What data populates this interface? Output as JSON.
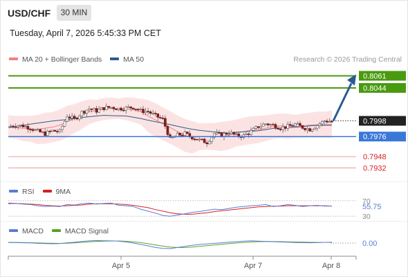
{
  "header": {
    "symbol": "USD/CHF",
    "timeframe": "30 MIN",
    "datetime": "Tuesday, April 7, 2026 5:45:33 PM CET"
  },
  "legend_main": {
    "ma20_label": "MA 20 + Bollinger Bands",
    "ma50_label": "MA 50",
    "ma20_color": "#f08080",
    "ma50_color": "#2c5a8c"
  },
  "source_note": "Research © 2026 Trading Central",
  "legend_rsi": {
    "rsi_label": "RSI",
    "ma_label": "9MA",
    "rsi_color": "#5b7bd5",
    "ma_color": "#d62020"
  },
  "legend_macd": {
    "macd_label": "MACD",
    "signal_label": "MACD Signal",
    "macd_color": "#5b7bd5",
    "signal_color": "#5aa02c"
  },
  "chart_data": {
    "type": "candlestick",
    "instrument": "USD/CHF",
    "interval": "30 MIN",
    "x_ticks": [
      "Apr 5",
      "Apr 7",
      "Apr 8"
    ],
    "price_range": [
      0.792,
      0.8075
    ],
    "current_price": "0.7998",
    "levels": [
      {
        "value": 0.8061,
        "label": "0.8061",
        "kind": "resistance",
        "color": "#4a9a10"
      },
      {
        "value": 0.8044,
        "label": "0.8044",
        "kind": "resistance",
        "color": "#4a9a10"
      },
      {
        "value": 0.7998,
        "label": "0.7998",
        "kind": "current",
        "color": "#222222"
      },
      {
        "value": 0.7976,
        "label": "0.7976",
        "kind": "pivot",
        "color": "#3a78d8"
      },
      {
        "value": 0.7948,
        "label": "0.7948",
        "kind": "support",
        "color": "#d42020"
      },
      {
        "value": 0.7932,
        "label": "0.7932",
        "kind": "support",
        "color": "#d42020"
      }
    ],
    "forecast_arrow": {
      "from": 0.7998,
      "to": 0.8061,
      "color": "#2a5a96"
    },
    "price_path": [
      0.799,
      0.7992,
      0.7991,
      0.7988,
      0.7983,
      0.798,
      0.7984,
      0.7983,
      0.8005,
      0.8,
      0.801,
      0.8015,
      0.8012,
      0.8016,
      0.8017,
      0.8015,
      0.8016,
      0.8017,
      0.8012,
      0.8011,
      0.8005,
      0.8,
      0.7972,
      0.7978,
      0.798,
      0.7975,
      0.7971,
      0.7968,
      0.798,
      0.7978,
      0.7982,
      0.7977,
      0.7977,
      0.7983,
      0.799,
      0.7994,
      0.7992,
      0.7988,
      0.799,
      0.7993,
      0.7989,
      0.7986,
      0.7992,
      0.7998,
      0.7997
    ],
    "rsi": {
      "levels": [
        "70",
        "30"
      ],
      "last_value": "55.75",
      "rsi_path": [
        62,
        63,
        61,
        60,
        57,
        55,
        56,
        55,
        60,
        59,
        62,
        64,
        61,
        63,
        64,
        58,
        57,
        55,
        48,
        43,
        38,
        32,
        30,
        33,
        36,
        40,
        42,
        45,
        48,
        47,
        50,
        53,
        55,
        57,
        58,
        60,
        55,
        57,
        60,
        58,
        55,
        57,
        58,
        56,
        56
      ],
      "ma_path": [
        64,
        63,
        62,
        61,
        60,
        58,
        57,
        56,
        57,
        58,
        59,
        61,
        62,
        62,
        62,
        61,
        60,
        58,
        55,
        52,
        47,
        43,
        39,
        36,
        35,
        35,
        37,
        39,
        42,
        44,
        46,
        48,
        50,
        52,
        54,
        55,
        56,
        56,
        57,
        57,
        57,
        57,
        57,
        57,
        56
      ]
    },
    "macd": {
      "last_value": "0.00",
      "macd_path": [
        0.0002,
        0.00015,
        0.0001,
        5e-05,
        -0.0001,
        -0.0002,
        -0.00025,
        -0.0002,
        0.0001,
        0.0003,
        0.0006,
        0.0008,
        0.0009,
        0.00085,
        0.0008,
        0.0007,
        0.0004,
        0.0,
        -0.0005,
        -0.001,
        -0.0016,
        -0.0019,
        -0.002,
        -0.0016,
        -0.0012,
        -0.0008,
        -0.0005,
        -0.0003,
        -0.0001,
        0.0001,
        0.0003,
        0.0005,
        0.0007,
        0.0008,
        0.0007,
        0.0006,
        0.0005,
        0.0004,
        0.0003,
        0.0002,
        0.00015,
        0.0001,
        0.00015,
        0.00025,
        0.0003
      ],
      "signal_path": [
        0.00025,
        0.00022,
        0.00018,
        0.00012,
        5e-05,
        -2e-05,
        -8e-05,
        -0.00012,
        -5e-05,
        8e-05,
        0.00025,
        0.00045,
        0.0006,
        0.0007,
        0.00075,
        0.00074,
        0.00065,
        0.00045,
        0.00015,
        -0.00025,
        -0.0007,
        -0.0011,
        -0.00145,
        -0.0016,
        -0.0016,
        -0.00145,
        -0.0012,
        -0.00095,
        -0.0007,
        -0.00045,
        -0.0002,
        2e-05,
        0.00022,
        0.0004,
        0.0005,
        0.00055,
        0.00055,
        0.00052,
        0.00046,
        0.0004,
        0.00034,
        0.00028,
        0.00025,
        0.00025,
        0.00026
      ]
    }
  }
}
